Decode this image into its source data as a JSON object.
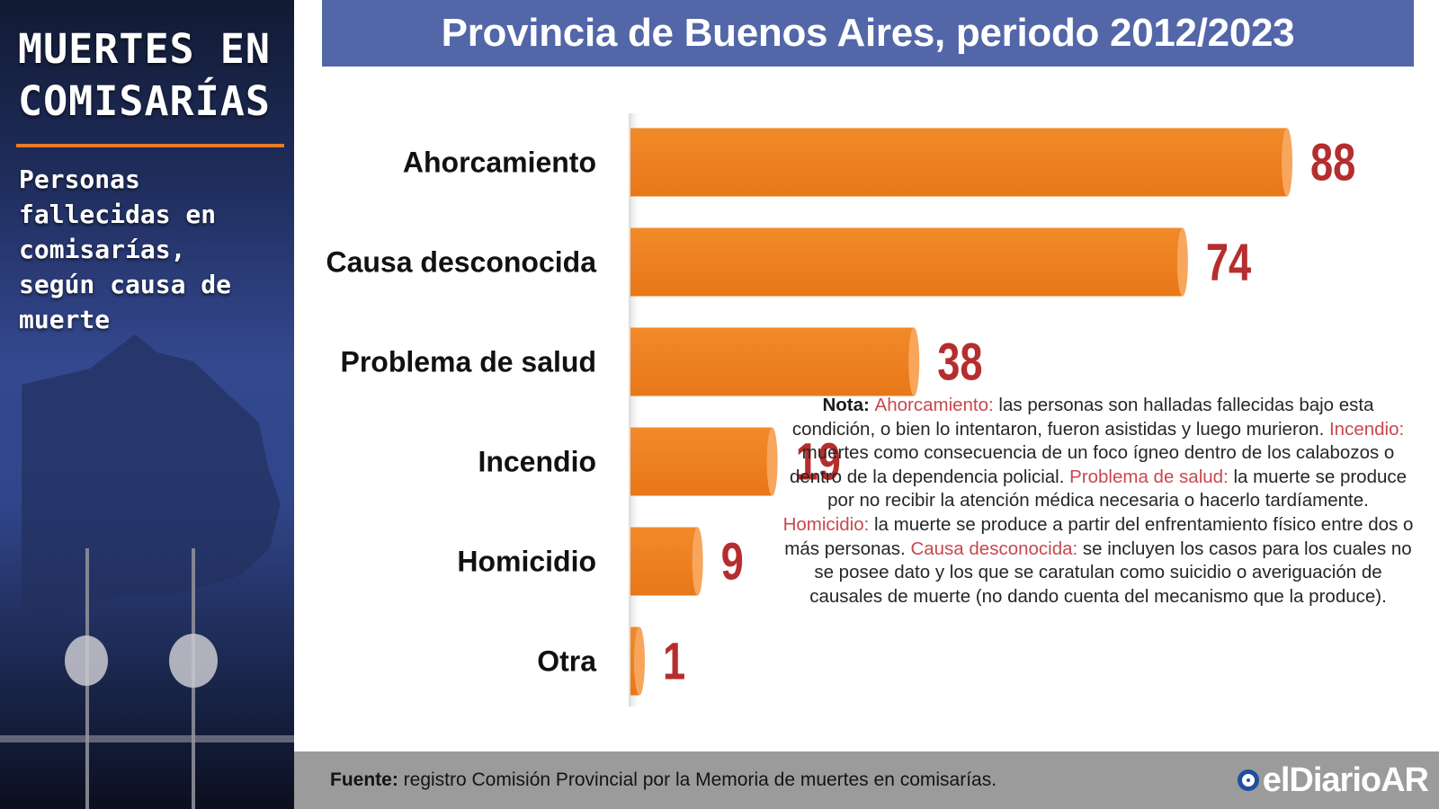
{
  "side": {
    "title": "MUERTES EN\nCOMISARÍAS",
    "subtitle": "Personas\nfallecidas en\ncomisarías,\nsegún causa de\nmuerte"
  },
  "header": {
    "title": "Provincia de Buenos Aires, periodo 2012/2023"
  },
  "chart_data": {
    "type": "bar",
    "orientation": "horizontal",
    "title": "Provincia de Buenos Aires, periodo 2012/2023",
    "categories": [
      "Ahorcamiento",
      "Causa desconocida",
      "Problema de salud",
      "Incendio",
      "Homicidio",
      "Otra"
    ],
    "values": [
      88,
      74,
      38,
      19,
      9,
      1
    ],
    "xlim": [
      0,
      88
    ],
    "grid": false,
    "legend": "none",
    "bar_color": "#ef8222",
    "value_label_color": "#b62d2d"
  },
  "note": {
    "lead": "Nota:",
    "items": [
      {
        "term": "Ahorcamiento:",
        "text": " las personas son halladas fallecidas bajo esta condición, o bien lo intentaron, fueron asistidas y luego murieron."
      },
      {
        "term": "Incendio:",
        "text": " muertes como consecuencia de un foco ígneo dentro de los calabozos o dentro de la dependencia policial."
      },
      {
        "term": "Problema de salud:",
        "text": " la muerte se produce por no recibir la atención médica necesaria o hacerlo tardíamente."
      },
      {
        "term": "Homicidio:",
        "text": " la muerte se produce a partir del enfrentamiento físico entre dos o más personas."
      },
      {
        "term": "Causa desconocida:",
        "text": " se incluyen los casos para los cuales no se posee dato y los que se caratulan como suicidio o averiguación de causales de muerte (no dando cuenta del mecanismo que la produce)."
      }
    ]
  },
  "footer": {
    "source_lead": "Fuente:",
    "source_text": " registro Comisión Provincial por la  Memoria de muertes en comisarías.",
    "brand": "elDiarioAR"
  }
}
